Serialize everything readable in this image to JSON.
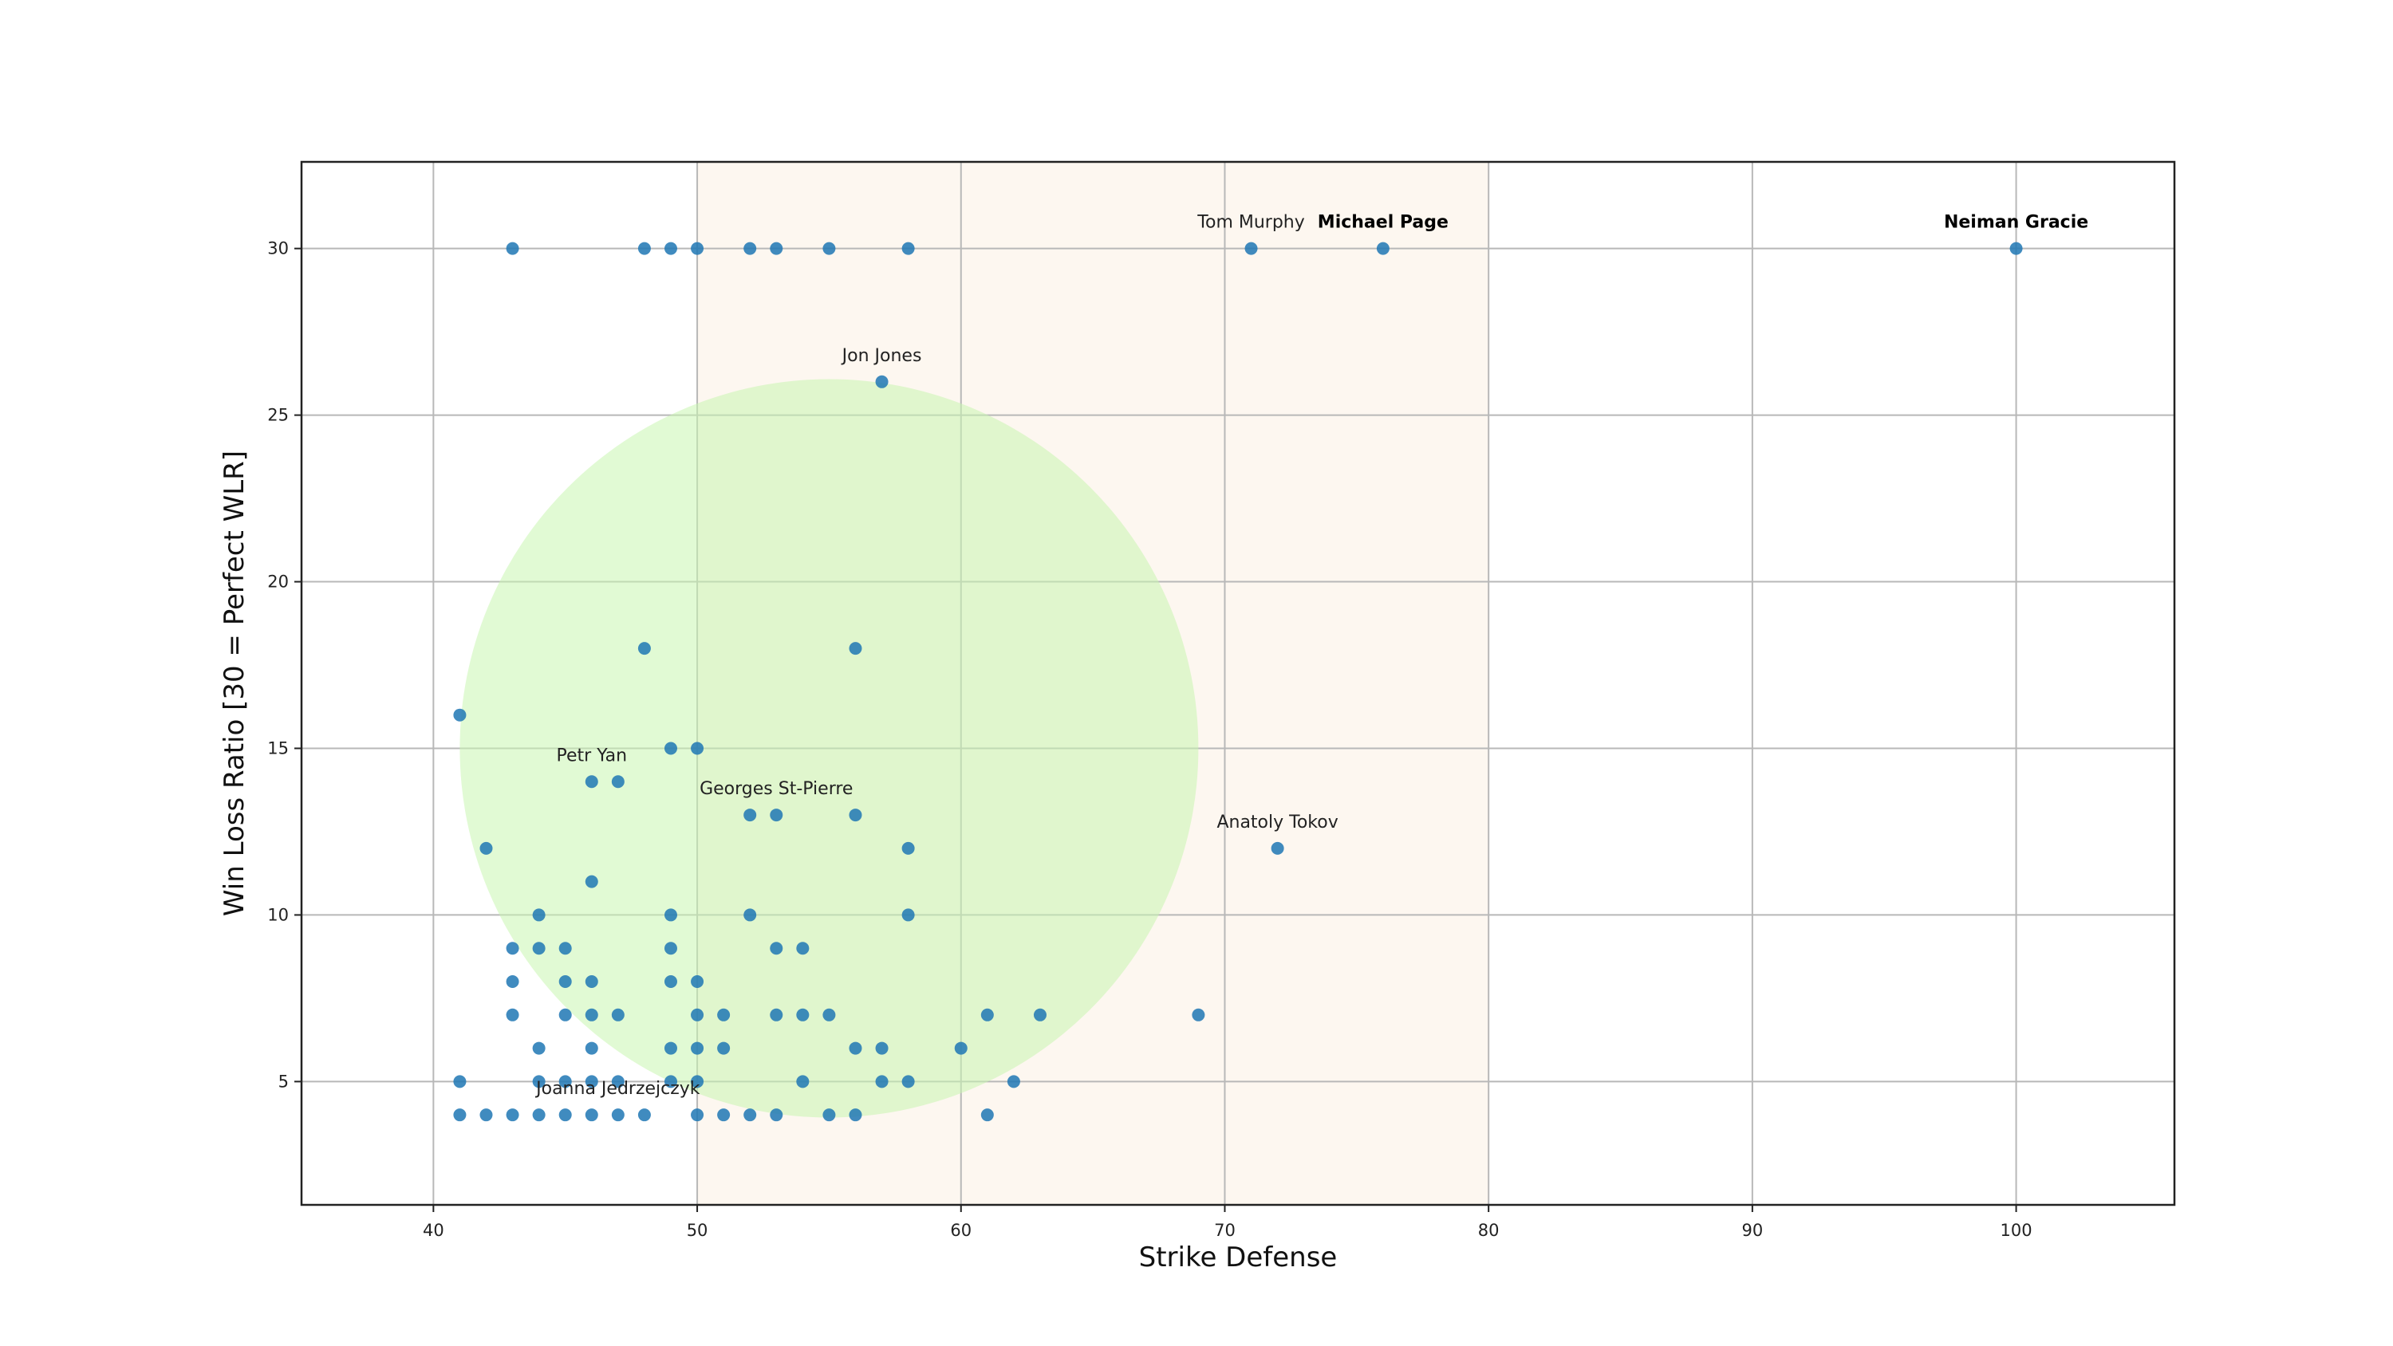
{
  "chart_data": {
    "type": "scatter",
    "title": "",
    "xlabel": "Strike Defense",
    "ylabel": "Win Loss Ratio [30 = Perfect WLR]",
    "xlim": [
      35,
      106
    ],
    "ylim": [
      1.3,
      32.6
    ],
    "xticks": [
      40,
      50,
      60,
      70,
      80,
      90,
      100
    ],
    "yticks": [
      5,
      10,
      15,
      20,
      25,
      30
    ],
    "grid": true,
    "point_color": "#1f77b4",
    "shaded_band": {
      "x_range": [
        50,
        80
      ],
      "color": "#fdf7f0"
    },
    "highlight_circle": {
      "center": [
        55,
        15
      ],
      "radius_x": 14,
      "color": "#c8f5b0",
      "opacity": 0.55
    },
    "points": [
      [
        43,
        30
      ],
      [
        48,
        30
      ],
      [
        49,
        30
      ],
      [
        50,
        30
      ],
      [
        52,
        30
      ],
      [
        53,
        30
      ],
      [
        55,
        30
      ],
      [
        58,
        30
      ],
      [
        71,
        30
      ],
      [
        76,
        30
      ],
      [
        100,
        30
      ],
      [
        57,
        26
      ],
      [
        48,
        18
      ],
      [
        56,
        18
      ],
      [
        41,
        16
      ],
      [
        49,
        15
      ],
      [
        50,
        15
      ],
      [
        46,
        14
      ],
      [
        47,
        14
      ],
      [
        52,
        13
      ],
      [
        53,
        13
      ],
      [
        56,
        13
      ],
      [
        42,
        12
      ],
      [
        58,
        12
      ],
      [
        72,
        12
      ],
      [
        46,
        11
      ],
      [
        44,
        10
      ],
      [
        49,
        10
      ],
      [
        52,
        10
      ],
      [
        58,
        10
      ],
      [
        43,
        9
      ],
      [
        44,
        9
      ],
      [
        45,
        9
      ],
      [
        49,
        9
      ],
      [
        53,
        9
      ],
      [
        54,
        9
      ],
      [
        43,
        8
      ],
      [
        45,
        8
      ],
      [
        46,
        8
      ],
      [
        49,
        8
      ],
      [
        50,
        8
      ],
      [
        43,
        7
      ],
      [
        45,
        7
      ],
      [
        46,
        7
      ],
      [
        47,
        7
      ],
      [
        50,
        7
      ],
      [
        51,
        7
      ],
      [
        53,
        7
      ],
      [
        54,
        7
      ],
      [
        55,
        7
      ],
      [
        61,
        7
      ],
      [
        63,
        7
      ],
      [
        69,
        7
      ],
      [
        44,
        6
      ],
      [
        46,
        6
      ],
      [
        49,
        6
      ],
      [
        50,
        6
      ],
      [
        51,
        6
      ],
      [
        56,
        6
      ],
      [
        57,
        6
      ],
      [
        60,
        6
      ],
      [
        41,
        5
      ],
      [
        44,
        5
      ],
      [
        45,
        5
      ],
      [
        46,
        5
      ],
      [
        47,
        5
      ],
      [
        49,
        5
      ],
      [
        50,
        5
      ],
      [
        54,
        5
      ],
      [
        57,
        5
      ],
      [
        58,
        5
      ],
      [
        62,
        5
      ],
      [
        41,
        4
      ],
      [
        42,
        4
      ],
      [
        43,
        4
      ],
      [
        44,
        4
      ],
      [
        45,
        4
      ],
      [
        46,
        4
      ],
      [
        47,
        4
      ],
      [
        48,
        4
      ],
      [
        50,
        4
      ],
      [
        51,
        4
      ],
      [
        52,
        4
      ],
      [
        53,
        4
      ],
      [
        55,
        4
      ],
      [
        56,
        4
      ],
      [
        61,
        4
      ]
    ],
    "annotations": [
      {
        "text": "Tom Murphy",
        "x": 71,
        "y": 30,
        "bold": false
      },
      {
        "text": "Michael Page",
        "x": 76,
        "y": 30,
        "bold": true
      },
      {
        "text": "Neiman Gracie",
        "x": 100,
        "y": 30,
        "bold": true
      },
      {
        "text": "Jon Jones",
        "x": 57,
        "y": 26,
        "bold": false
      },
      {
        "text": "Petr Yan",
        "x": 46,
        "y": 14,
        "bold": false
      },
      {
        "text": "Georges St-Pierre",
        "x": 53,
        "y": 13,
        "bold": false
      },
      {
        "text": "Anatoly Tokov",
        "x": 72,
        "y": 12,
        "bold": false
      },
      {
        "text": "Joanna Jedrzejczyk",
        "x": 47,
        "y": 4,
        "bold": false
      }
    ]
  }
}
